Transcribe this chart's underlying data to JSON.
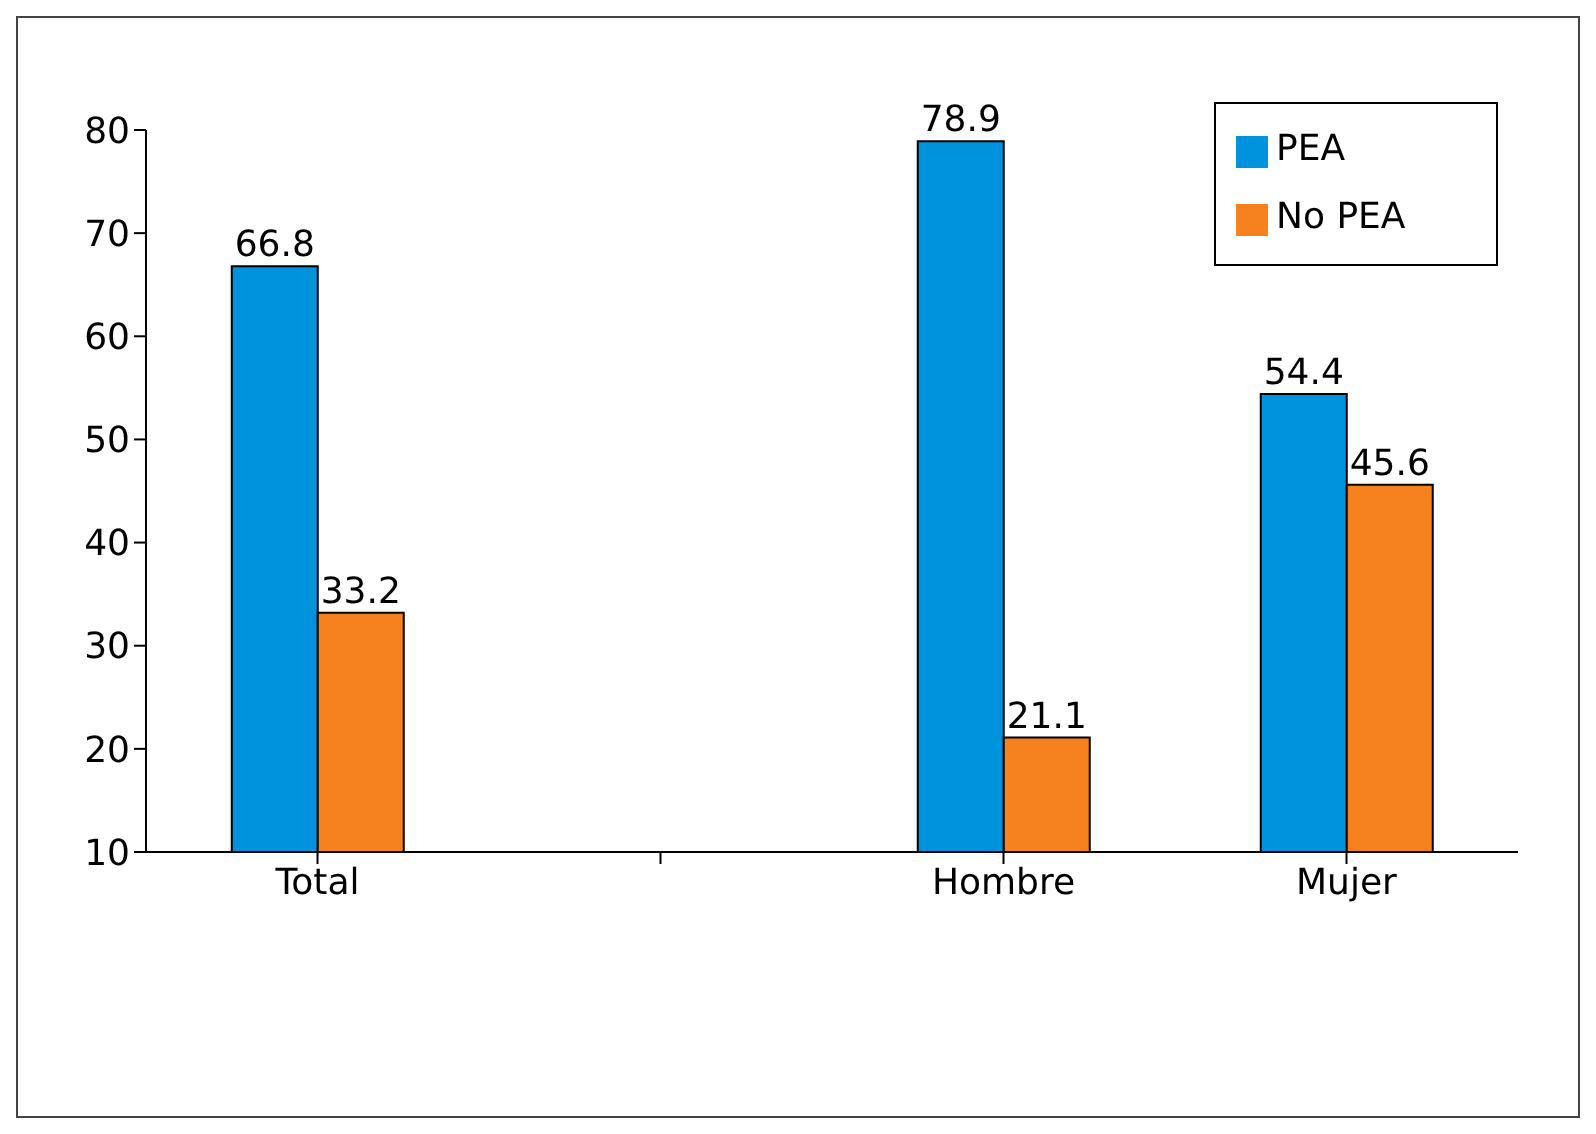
{
  "chart_data": {
    "type": "bar",
    "categories": [
      "Total",
      null,
      "Hombre",
      "Mujer"
    ],
    "series": [
      {
        "name": "PEA",
        "color": "#0093dd",
        "values": [
          66.8,
          null,
          78.9,
          54.4
        ]
      },
      {
        "name": "No PEA",
        "color": "#f5821f",
        "values": [
          33.2,
          null,
          21.1,
          45.6
        ]
      }
    ],
    "ylim": [
      10,
      80
    ],
    "yticks": [
      10,
      20,
      30,
      40,
      50,
      60,
      70,
      80
    ],
    "grid": false,
    "legend": "top right",
    "data_labels": true
  }
}
